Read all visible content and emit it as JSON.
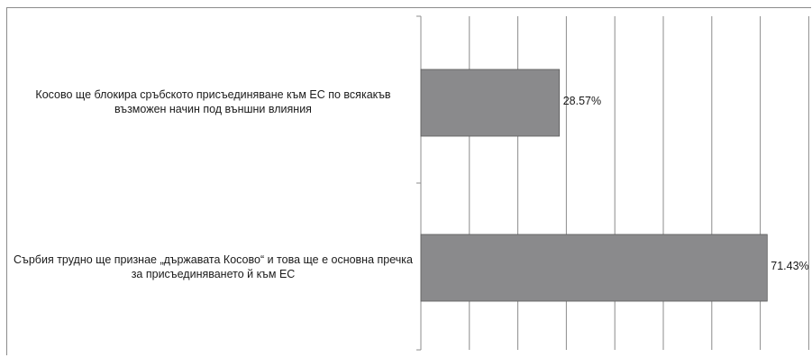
{
  "chart_data": {
    "type": "bar",
    "orientation": "horizontal",
    "categories": [
      "Косово ще блокира сръбското присъединяване към ЕС по всякакъв възможен начин под външни влияния",
      "Сърбия трудно ще признае „държавата Косово“ и това ще е основна пречка за присъединяването й към ЕС"
    ],
    "values": [
      28.57,
      71.43
    ],
    "value_labels": [
      "28.57%",
      "71.43%"
    ],
    "xlim": [
      0,
      80
    ],
    "grid": true,
    "bar_color": "#8a8a8c",
    "title": "",
    "xlabel": "",
    "ylabel": ""
  }
}
